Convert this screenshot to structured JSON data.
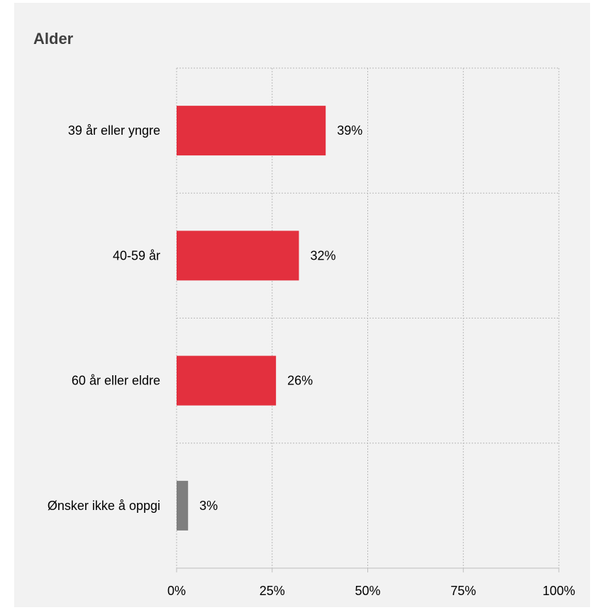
{
  "chart_data": {
    "type": "bar",
    "orientation": "horizontal",
    "title": "Alder",
    "xlabel": "",
    "ylabel": "",
    "categories": [
      "39 år eller yngre",
      "40-59 år",
      "60 år eller eldre",
      "Ønsker ikke å oppgi"
    ],
    "values": [
      39,
      32,
      26,
      3
    ],
    "value_labels": [
      "39%",
      "32%",
      "26%",
      "3%"
    ],
    "bar_colors": [
      "#e3303e",
      "#e3303e",
      "#e3303e",
      "#7f7f7f"
    ],
    "xlim": [
      0,
      100
    ],
    "x_ticks": [
      0,
      25,
      50,
      75,
      100
    ],
    "x_tick_labels": [
      "0%",
      "25%",
      "50%",
      "75%",
      "100%"
    ],
    "grid": true,
    "legend": "none"
  }
}
